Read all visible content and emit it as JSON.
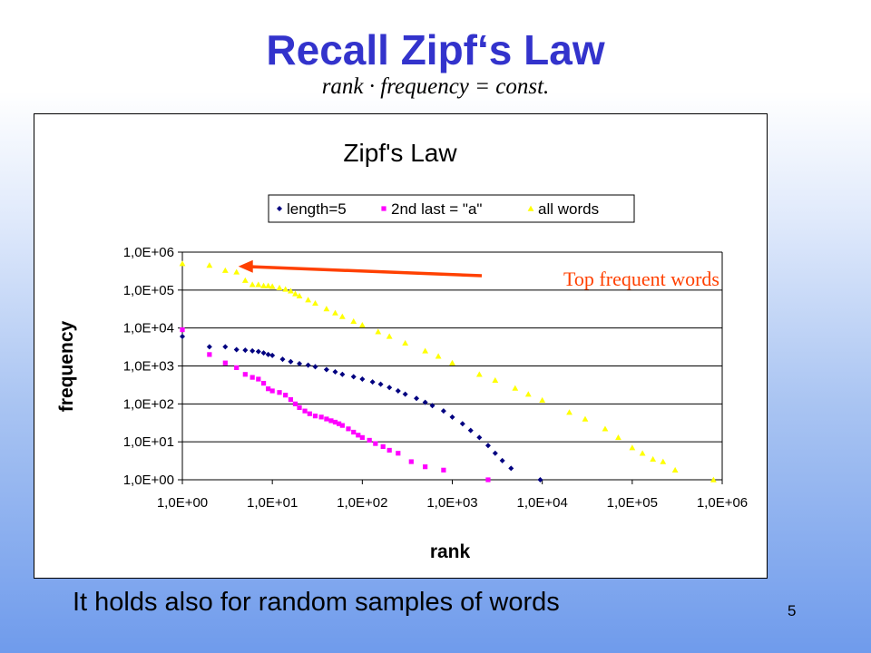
{
  "slide": {
    "title": "Recall Zipf‘s Law",
    "formula": "rank · frequency = const.",
    "caption": "It holds also for random samples of words",
    "page_number": "5"
  },
  "colors": {
    "title": "#3333cc",
    "series_length5": "#000080",
    "series_2nd_last_a": "#ff00ff",
    "series_all_words": "#ffff00",
    "annotation": "#ff4000"
  },
  "chart_data": {
    "type": "scatter",
    "title": "Zipf's Law",
    "xlabel": "rank",
    "ylabel": "frequency",
    "x_scale": "log",
    "y_scale": "log",
    "xlim": [
      1,
      1000000
    ],
    "ylim": [
      1,
      1000000
    ],
    "x_ticks": [
      "1,0E+00",
      "1,0E+01",
      "1,0E+02",
      "1,0E+03",
      "1,0E+04",
      "1,0E+05",
      "1,0E+06"
    ],
    "y_ticks": [
      "1,0E+00",
      "1,0E+01",
      "1,0E+02",
      "1,0E+03",
      "1,0E+04",
      "1,0E+05",
      "1,0E+06"
    ],
    "grid": "horizontal",
    "legend_position": "top",
    "annotation": {
      "text": "Top frequent words",
      "points_to": [
        4,
        420000
      ]
    },
    "series": [
      {
        "name": "length=5",
        "marker": "diamond",
        "points": [
          [
            1,
            6000
          ],
          [
            2,
            3200
          ],
          [
            3,
            3200
          ],
          [
            4,
            2700
          ],
          [
            5,
            2600
          ],
          [
            6,
            2500
          ],
          [
            7,
            2400
          ],
          [
            8,
            2200
          ],
          [
            9,
            2000
          ],
          [
            10,
            1900
          ],
          [
            13,
            1500
          ],
          [
            16,
            1300
          ],
          [
            20,
            1150
          ],
          [
            25,
            1050
          ],
          [
            30,
            950
          ],
          [
            40,
            800
          ],
          [
            50,
            700
          ],
          [
            60,
            600
          ],
          [
            80,
            520
          ],
          [
            100,
            450
          ],
          [
            130,
            380
          ],
          [
            160,
            330
          ],
          [
            200,
            270
          ],
          [
            250,
            220
          ],
          [
            300,
            180
          ],
          [
            400,
            140
          ],
          [
            500,
            110
          ],
          [
            600,
            90
          ],
          [
            800,
            65
          ],
          [
            1000,
            45
          ],
          [
            1300,
            30
          ],
          [
            1600,
            20
          ],
          [
            2000,
            13
          ],
          [
            2500,
            8
          ],
          [
            3000,
            5
          ],
          [
            3600,
            3.2
          ],
          [
            4500,
            2
          ],
          [
            9500,
            1
          ]
        ]
      },
      {
        "name": "2nd last = \"a\"",
        "marker": "square",
        "points": [
          [
            1,
            9000
          ],
          [
            2,
            2000
          ],
          [
            3,
            1200
          ],
          [
            4,
            900
          ],
          [
            5,
            600
          ],
          [
            6,
            500
          ],
          [
            7,
            450
          ],
          [
            8,
            350
          ],
          [
            9,
            250
          ],
          [
            10,
            220
          ],
          [
            12,
            200
          ],
          [
            14,
            170
          ],
          [
            16,
            130
          ],
          [
            18,
            100
          ],
          [
            20,
            80
          ],
          [
            23,
            65
          ],
          [
            26,
            55
          ],
          [
            30,
            48
          ],
          [
            35,
            45
          ],
          [
            40,
            40
          ],
          [
            45,
            36
          ],
          [
            50,
            33
          ],
          [
            55,
            30
          ],
          [
            60,
            27
          ],
          [
            70,
            22
          ],
          [
            80,
            18
          ],
          [
            90,
            15
          ],
          [
            100,
            13
          ],
          [
            120,
            11
          ],
          [
            140,
            9
          ],
          [
            170,
            7.5
          ],
          [
            200,
            6
          ],
          [
            250,
            5
          ],
          [
            350,
            3
          ],
          [
            500,
            2.2
          ],
          [
            800,
            1.8
          ],
          [
            2500,
            1
          ]
        ]
      },
      {
        "name": "all words",
        "marker": "triangle",
        "points": [
          [
            1,
            500000
          ],
          [
            2,
            450000
          ],
          [
            3,
            330000
          ],
          [
            4,
            300000
          ],
          [
            5,
            180000
          ],
          [
            6,
            140000
          ],
          [
            7,
            140000
          ],
          [
            8,
            130000
          ],
          [
            9,
            130000
          ],
          [
            10,
            125000
          ],
          [
            12,
            115000
          ],
          [
            14,
            105000
          ],
          [
            16,
            95000
          ],
          [
            18,
            80000
          ],
          [
            20,
            70000
          ],
          [
            25,
            55000
          ],
          [
            30,
            45000
          ],
          [
            40,
            32000
          ],
          [
            50,
            25000
          ],
          [
            60,
            20000
          ],
          [
            80,
            15000
          ],
          [
            100,
            12000
          ],
          [
            150,
            8000
          ],
          [
            200,
            6000
          ],
          [
            300,
            4000
          ],
          [
            500,
            2500
          ],
          [
            700,
            1800
          ],
          [
            1000,
            1200
          ],
          [
            2000,
            600
          ],
          [
            3000,
            420
          ],
          [
            5000,
            260
          ],
          [
            7000,
            180
          ],
          [
            10000,
            125
          ],
          [
            20000,
            60
          ],
          [
            30000,
            40
          ],
          [
            50000,
            22
          ],
          [
            70000,
            13
          ],
          [
            100000,
            7
          ],
          [
            130000,
            5
          ],
          [
            170000,
            3.5
          ],
          [
            220000,
            3
          ],
          [
            300000,
            1.8
          ],
          [
            800000,
            1
          ]
        ]
      }
    ]
  }
}
